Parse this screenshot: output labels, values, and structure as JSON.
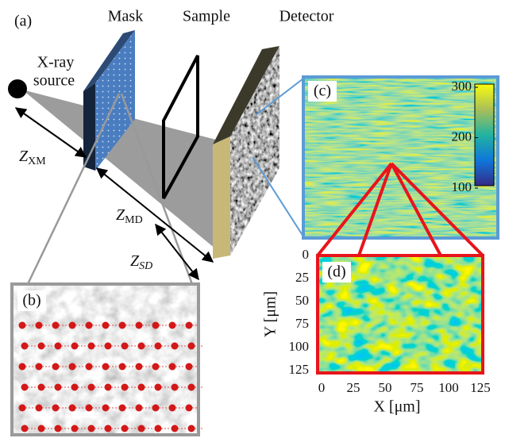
{
  "panel_a": {
    "label": "(a)",
    "mask": "Mask",
    "sample": "Sample",
    "detector": "Detector",
    "source": [
      "X-ray",
      "source"
    ],
    "distances": [
      {
        "symbol": "Z",
        "subscript": "XM"
      },
      {
        "symbol": "Z",
        "subscript": "MD"
      },
      {
        "symbol": "Z",
        "subscript": "SD"
      }
    ]
  },
  "panel_b": {
    "label": "(b)"
  },
  "panel_c": {
    "label": "(c)",
    "colorbar_ticks": [
      300,
      200,
      100
    ]
  },
  "panel_d": {
    "label": "(d)",
    "xticks": [
      0,
      25,
      50,
      75,
      100,
      125
    ],
    "yticks": [
      0,
      25,
      50,
      75,
      100,
      125
    ],
    "xlabel": "X [μm]",
    "ylabel": "Y [μm]"
  }
}
